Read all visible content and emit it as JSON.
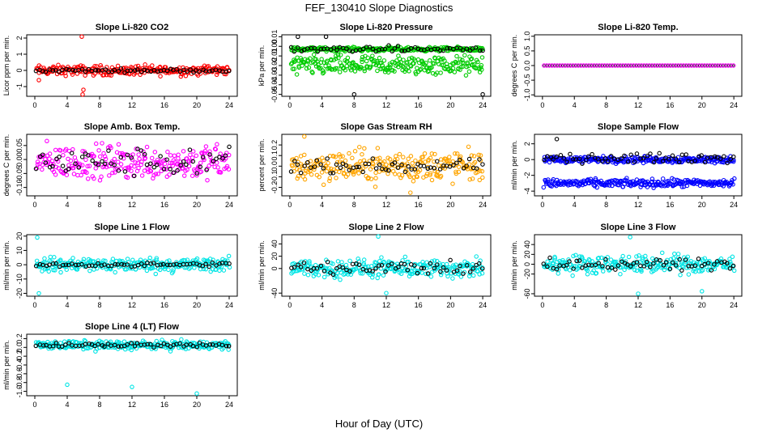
{
  "figure": {
    "title": "FEF_130410  Slope Diagnostics",
    "xlabel": "Hour of Day (UTC)"
  },
  "chart_data": [
    {
      "type": "scatter",
      "title": "Slope Li-820 CO2",
      "ylabel": "Licor ppm per min.",
      "xlim": [
        -1,
        25
      ],
      "ylim": [
        -1.6,
        2.2
      ],
      "yticks": [
        "-1",
        "0",
        "1",
        "2"
      ],
      "ytick_values": [
        -1,
        0,
        1,
        2
      ],
      "xticks": [
        0,
        4,
        8,
        12,
        16,
        20,
        24
      ],
      "color": "#ff0000",
      "series": [
        {
          "kind": "band",
          "center": 0,
          "spread": 0.3,
          "outliers": [
            [
              5.8,
              2.1
            ],
            [
              5.9,
              -1.5
            ],
            [
              6.0,
              -1.2
            ],
            [
              0.5,
              -0.6
            ]
          ]
        },
        {
          "kind": "black",
          "center": 0,
          "spread": 0.1
        }
      ]
    },
    {
      "type": "scatter",
      "title": "Slope Li-820 Pressure",
      "ylabel": "kPa per min.",
      "xlim": [
        -1,
        25
      ],
      "ylim": [
        -0.052,
        0.012
      ],
      "yticks": [
        "-0.05",
        "-0.04",
        "-0.03",
        "-0.02",
        "-0.01",
        "0.00",
        "0.01"
      ],
      "ytick_values": [
        -0.05,
        -0.04,
        -0.03,
        -0.02,
        -0.01,
        0,
        0.01
      ],
      "xticks": [
        0,
        4,
        8,
        12,
        16,
        20,
        24
      ],
      "color": "#00cc00",
      "series": [
        {
          "kind": "band",
          "center": -0.003,
          "spread": 0.002
        },
        {
          "kind": "band",
          "center": -0.02,
          "spread": 0.01
        },
        {
          "kind": "black",
          "center": -0.003,
          "spread": 0.003,
          "outliers": [
            [
              1.0,
              0.01
            ],
            [
              4.5,
              0.01
            ],
            [
              8.0,
              -0.05
            ],
            [
              24.0,
              -0.05
            ]
          ]
        }
      ]
    },
    {
      "type": "scatter",
      "title": "Slope Li-820 Temp.",
      "ylabel": "degrees C per min.",
      "xlim": [
        -1,
        25
      ],
      "ylim": [
        -1.05,
        1.05
      ],
      "yticks": [
        "-1.0",
        "-0.5",
        "0.0",
        "0.5",
        "1.0"
      ],
      "ytick_values": [
        -1,
        -0.5,
        0,
        0.5,
        1
      ],
      "xticks": [
        0,
        4,
        8,
        12,
        16,
        20,
        24
      ],
      "color": "#ff00ff",
      "series": [
        {
          "kind": "flat",
          "center": 0
        }
      ]
    },
    {
      "type": "scatter",
      "title": "Slope Amb. Box Temp.",
      "ylabel": "degrees C per min.",
      "xlim": [
        -1,
        25
      ],
      "ylim": [
        -0.13,
        0.09
      ],
      "yticks": [
        "-0.10",
        "-0.05",
        "0.00",
        "0.05"
      ],
      "ytick_values": [
        -0.1,
        -0.05,
        0,
        0.05
      ],
      "xticks": [
        0,
        4,
        8,
        12,
        16,
        20,
        24
      ],
      "color": "#ff00ff",
      "series": [
        {
          "kind": "band",
          "center": -0.01,
          "spread": 0.06
        },
        {
          "kind": "black",
          "center": -0.01,
          "spread": 0.05
        }
      ]
    },
    {
      "type": "scatter",
      "title": "Slope Gas Stream RH",
      "ylabel": "percent per min.",
      "xlim": [
        -1,
        25
      ],
      "ylim": [
        -0.28,
        0.3
      ],
      "yticks": [
        "-0.2",
        "-0.1",
        "0.0",
        "0.1",
        "0.2"
      ],
      "ytick_values": [
        -0.2,
        -0.1,
        0,
        0.1,
        0.2
      ],
      "xticks": [
        0,
        4,
        8,
        12,
        16,
        20,
        24
      ],
      "color": "#ffa500",
      "series": [
        {
          "kind": "band",
          "center": 0,
          "spread": 0.15,
          "outliers": [
            [
              1.8,
              0.28
            ],
            [
              15.0,
              -0.25
            ]
          ]
        },
        {
          "kind": "black",
          "center": 0,
          "spread": 0.06
        }
      ]
    },
    {
      "type": "scatter",
      "title": "Slope Sample Flow",
      "ylabel": "ml/min per min.",
      "xlim": [
        -1,
        25
      ],
      "ylim": [
        -4.6,
        3.2
      ],
      "yticks": [
        "-4",
        "-2",
        "0",
        "2"
      ],
      "ytick_values": [
        -4,
        -2,
        0,
        2
      ],
      "xticks": [
        0,
        4,
        8,
        12,
        16,
        20,
        24
      ],
      "color": "#0000ff",
      "series": [
        {
          "kind": "band",
          "center": 0,
          "spread": 0.4
        },
        {
          "kind": "band",
          "center": -3,
          "spread": 0.5
        },
        {
          "kind": "black",
          "center": 0.2,
          "spread": 0.6,
          "outliers": [
            [
              1.8,
              2.6
            ]
          ]
        }
      ]
    },
    {
      "type": "scatter",
      "title": "Slope Line 1 Flow",
      "ylabel": "ml/min per min.",
      "xlim": [
        -1,
        25
      ],
      "ylim": [
        -22,
        21
      ],
      "yticks": [
        "-20",
        "-10",
        "0",
        "10",
        "20"
      ],
      "ytick_values": [
        -20,
        -10,
        0,
        10,
        20
      ],
      "xticks": [
        0,
        4,
        8,
        12,
        16,
        20,
        24
      ],
      "color": "#00e5e5",
      "series": [
        {
          "kind": "band",
          "center": 0,
          "spread": 5,
          "outliers": [
            [
              0.3,
              19
            ],
            [
              0.5,
              -20
            ]
          ]
        },
        {
          "kind": "black",
          "center": 0,
          "spread": 1.5
        }
      ]
    },
    {
      "type": "scatter",
      "title": "Slope Line 2 Flow",
      "ylabel": "ml/min per min.",
      "xlim": [
        -1,
        25
      ],
      "ylim": [
        -45,
        55
      ],
      "yticks": [
        "-40",
        "0",
        "20",
        "40"
      ],
      "ytick_values": [
        -40,
        0,
        20,
        40
      ],
      "xticks": [
        0,
        4,
        8,
        12,
        16,
        20,
        24
      ],
      "color": "#00e5e5",
      "series": [
        {
          "kind": "band",
          "center": 0,
          "spread": 15,
          "outliers": [
            [
              11.0,
              52
            ],
            [
              12.0,
              -40
            ]
          ]
        },
        {
          "kind": "black",
          "center": 0,
          "spread": 12
        }
      ]
    },
    {
      "type": "scatter",
      "title": "Slope Line 3 Flow",
      "ylabel": "ml/min per min.",
      "xlim": [
        -1,
        25
      ],
      "ylim": [
        -65,
        60
      ],
      "yticks": [
        "-60",
        "-20",
        "0",
        "20",
        "40"
      ],
      "ytick_values": [
        -60,
        -20,
        0,
        20,
        40
      ],
      "xticks": [
        0,
        4,
        8,
        12,
        16,
        20,
        24
      ],
      "color": "#00e5e5",
      "series": [
        {
          "kind": "band",
          "center": 0,
          "spread": 18,
          "outliers": [
            [
              11.0,
              55
            ],
            [
              12.0,
              -60
            ],
            [
              20.0,
              -55
            ]
          ]
        },
        {
          "kind": "black",
          "center": 0,
          "spread": 10
        }
      ]
    },
    {
      "type": "scatter",
      "title": "Slope Line 4 (LT) Flow",
      "ylabel": "ml/min per min.",
      "xlim": [
        -1,
        25
      ],
      "ylim": [
        -1.1,
        0.3
      ],
      "yticks": [
        "-1.0",
        "-0.8",
        "-0.6",
        "-0.4",
        "-0.2",
        "0.0",
        "0.2"
      ],
      "ytick_values": [
        -1,
        -0.8,
        -0.6,
        -0.4,
        -0.2,
        0,
        0.2
      ],
      "xticks": [
        0,
        4,
        8,
        12,
        16,
        20,
        24
      ],
      "color": "#00e5e5",
      "series": [
        {
          "kind": "band",
          "center": 0.05,
          "spread": 0.1,
          "outliers": [
            [
              4.0,
              -0.85
            ],
            [
              12.0,
              -0.9
            ],
            [
              20.0,
              -1.05
            ]
          ]
        },
        {
          "kind": "black",
          "center": 0.05,
          "spread": 0.05
        }
      ]
    }
  ]
}
